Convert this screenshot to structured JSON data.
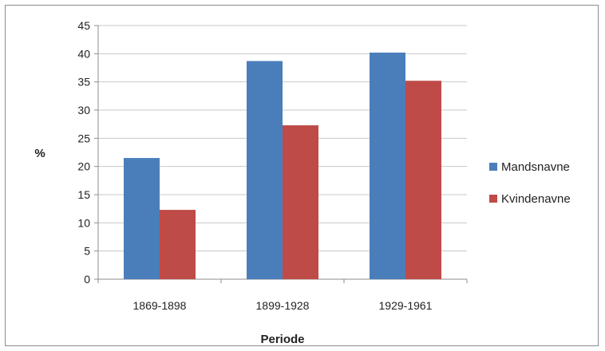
{
  "chart_data": {
    "type": "bar",
    "categories": [
      "1869-1898",
      "1899-1928",
      "1929-1961"
    ],
    "series": [
      {
        "name": "Mandsnavne",
        "color": "#4a7ebb",
        "values": [
          21.5,
          38.7,
          40.2
        ]
      },
      {
        "name": "Kvindenavne",
        "color": "#be4b48",
        "values": [
          12.3,
          27.3,
          35.2
        ]
      }
    ],
    "xlabel": "Periode",
    "ylabel": "%",
    "ylim": [
      0,
      45
    ],
    "yticks": [
      0,
      5,
      10,
      15,
      20,
      25,
      30,
      35,
      40,
      45
    ],
    "grid": true,
    "legend_position": "right"
  }
}
